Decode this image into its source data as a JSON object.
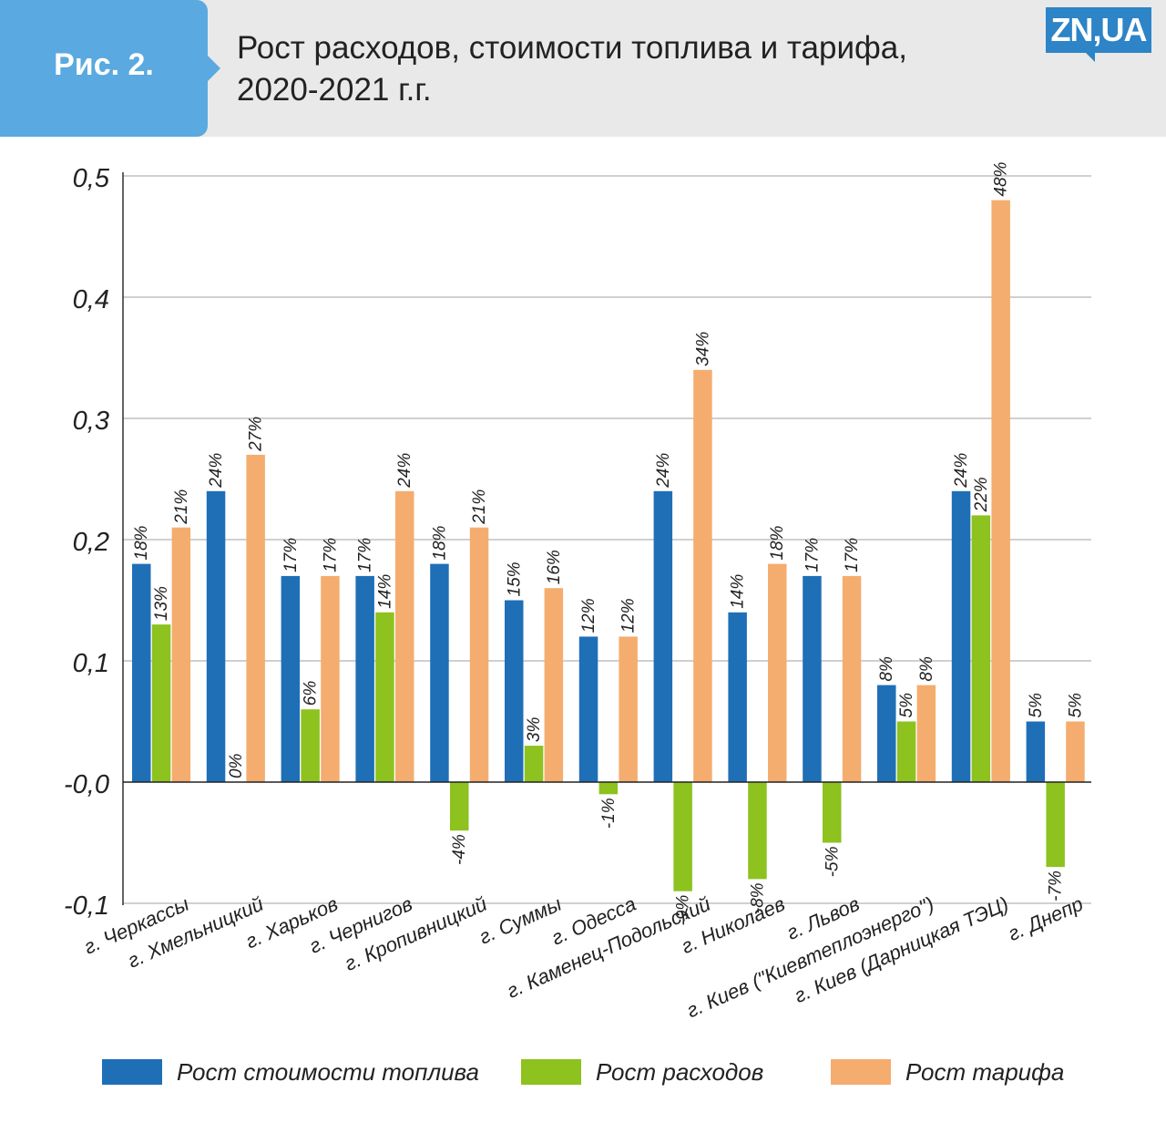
{
  "header": {
    "fig_label": "Рис. 2.",
    "title_line1": "Рост расходов, стоимости топлива и тарифа,",
    "title_line2": "2020-2021 г.г.",
    "logo": "ZN,UA"
  },
  "chart_data": {
    "type": "bar",
    "title": "Рост расходов, стоимости топлива и тарифа, 2020-2021 г.г.",
    "xlabel": "",
    "ylabel": "",
    "ylim": [
      -0.1,
      0.5
    ],
    "yticks": [
      0.5,
      0.4,
      0.3,
      0.2,
      0.1,
      0.0,
      -0.1
    ],
    "ytick_labels": [
      "0,5",
      "0,4",
      "0,3",
      "0,2",
      "0,1",
      "-0,0",
      "-0,1"
    ],
    "grid": true,
    "categories": [
      "г. Черкассы",
      "г. Хмельницкий",
      "г. Харьков",
      "г. Чернигов",
      "г. Кропивницкий",
      "г. Суммы",
      "г. Одесса",
      "г. Каменец-Подольский",
      "г. Николаев",
      "г. Львов",
      "г. Киев (\"Киевтеплоэнерго\")",
      "г. Киев (Дарницкая ТЭЦ)",
      "г. Днепр"
    ],
    "series": [
      {
        "name": "Рост стоимости топлива",
        "color": "#1f6fb7",
        "values": [
          0.18,
          0.24,
          0.17,
          0.17,
          0.18,
          0.15,
          0.12,
          0.24,
          0.14,
          0.17,
          0.08,
          0.24,
          0.05
        ],
        "labels": [
          "18%",
          "24%",
          "17%",
          "17%",
          "18%",
          "15%",
          "12%",
          "24%",
          "14%",
          "17%",
          "8%",
          "24%",
          "5%"
        ]
      },
      {
        "name": "Рост расходов",
        "color": "#8dc21f",
        "values": [
          0.13,
          0.0,
          0.06,
          0.14,
          -0.04,
          0.03,
          -0.01,
          -0.09,
          -0.08,
          -0.05,
          0.05,
          0.22,
          -0.07
        ],
        "labels": [
          "13%",
          "0%",
          "6%",
          "14%",
          "-4%",
          "3%",
          "-1%",
          "-9%",
          "-8%",
          "-5%",
          "5%",
          "22%",
          "-7%"
        ]
      },
      {
        "name": "Рост тарифа",
        "color": "#f4ad6e",
        "values": [
          0.21,
          0.27,
          0.17,
          0.24,
          0.21,
          0.16,
          0.12,
          0.34,
          0.18,
          0.17,
          0.08,
          0.48,
          0.05
        ],
        "labels": [
          "21%",
          "27%",
          "17%",
          "24%",
          "21%",
          "16%",
          "12%",
          "34%",
          "18%",
          "17%",
          "8%",
          "48%",
          "5%"
        ]
      }
    ],
    "legend_position": "bottom"
  }
}
